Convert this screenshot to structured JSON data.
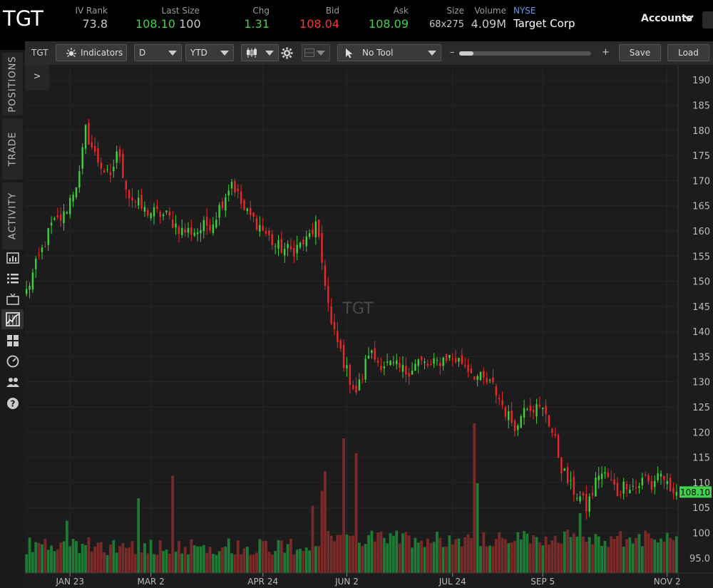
{
  "header": {
    "symbol": "TGT",
    "iv_rank_label": "IV Rank",
    "iv_rank": "73.8",
    "last_size_label": "Last Size",
    "last_price": "108.10",
    "last_size": "100",
    "chg_label": "Chg",
    "chg": "1.31",
    "bid_label": "Bid",
    "bid": "108.04",
    "ask_label": "Ask",
    "ask": "108.09",
    "size_label": "Size",
    "size": "68x275",
    "volume_label": "Volume",
    "volume": "4.09M",
    "exchange": "NYSE",
    "company": "Target Corp",
    "accounts_label": "Accounts"
  },
  "left_rail": {
    "tabs": [
      "POSITIONS",
      "TRADE",
      "ACTIVITY"
    ],
    "icons": [
      "chart-panel-icon",
      "list-icon",
      "tv-icon",
      "charts-icon",
      "grid-icon",
      "gauge-icon",
      "people-icon",
      "help-icon"
    ]
  },
  "toolbar": {
    "symbol": "TGT",
    "indicators_label": "Indicators",
    "aggregation": "D",
    "range": "YTD",
    "tool_label": "No Tool",
    "zoom_minus": "–",
    "zoom_plus": "+",
    "zoom_level": 0.11,
    "save_label": "Save",
    "load_label": "Load"
  },
  "chart_data": {
    "type": "candlestick",
    "watermark": "TGT",
    "ylim": [
      92,
      193
    ],
    "y_ticks": [
      95,
      100,
      105,
      110,
      115,
      120,
      125,
      130,
      135,
      140,
      145,
      150,
      155,
      160,
      165,
      170,
      175,
      180,
      185,
      190
    ],
    "y_tick_labels": [
      "95.0",
      "100",
      "105",
      "110",
      "115",
      "120",
      "125",
      "130",
      "135",
      "140",
      "145",
      "150",
      "155",
      "160",
      "165",
      "170",
      "175",
      "180",
      "185",
      "190"
    ],
    "x_tick_labels": [
      "JAN 23",
      "MAR 2",
      "APR 24",
      "JUN 2",
      "JUL 24",
      "SEP 5",
      "NOV 2"
    ],
    "x_tick_index": [
      14,
      40,
      76,
      103,
      137,
      166,
      206
    ],
    "last_price_label": "108.10",
    "last_price": 108.1,
    "colors": {
      "up": "#3fcf3f",
      "down": "#e8282b",
      "up_volume": "#1f7a36",
      "down_volume": "#7a2a28",
      "price_label_bg": "#3fd24a"
    },
    "close_path": [
      [
        0,
        148
      ],
      [
        3,
        153
      ],
      [
        8,
        161
      ],
      [
        12,
        163
      ],
      [
        15,
        168
      ],
      [
        17,
        171
      ],
      [
        19,
        180
      ],
      [
        22,
        175
      ],
      [
        27,
        170
      ],
      [
        29,
        176
      ],
      [
        33,
        167
      ],
      [
        38,
        164
      ],
      [
        45,
        163
      ],
      [
        50,
        160
      ],
      [
        55,
        160
      ],
      [
        60,
        162
      ],
      [
        63,
        166
      ],
      [
        66,
        170
      ],
      [
        70,
        164
      ],
      [
        75,
        161
      ],
      [
        80,
        157
      ],
      [
        85,
        156
      ],
      [
        90,
        158
      ],
      [
        93,
        161
      ],
      [
        96,
        150
      ],
      [
        98,
        141
      ],
      [
        101,
        136
      ],
      [
        103,
        132
      ],
      [
        106,
        128
      ],
      [
        108,
        131
      ],
      [
        110,
        136
      ],
      [
        113,
        134
      ],
      [
        118,
        133
      ],
      [
        122,
        132
      ],
      [
        126,
        134
      ],
      [
        130,
        133
      ],
      [
        135,
        135
      ],
      [
        140,
        134
      ],
      [
        145,
        131
      ],
      [
        150,
        129
      ],
      [
        155,
        123
      ],
      [
        158,
        121
      ],
      [
        160,
        126
      ],
      [
        163,
        125
      ],
      [
        167,
        124
      ],
      [
        170,
        118
      ],
      [
        172,
        113
      ],
      [
        175,
        109
      ],
      [
        178,
        107
      ],
      [
        180,
        105
      ],
      [
        182,
        108
      ],
      [
        184,
        112
      ],
      [
        187,
        111
      ],
      [
        190,
        108
      ],
      [
        193,
        110
      ],
      [
        196,
        109
      ],
      [
        199,
        111
      ],
      [
        201,
        109
      ],
      [
        203,
        112
      ],
      [
        205,
        111
      ],
      [
        207,
        107
      ],
      [
        209,
        108.1
      ]
    ],
    "volume_spikes": [
      [
        13,
        0.35
      ],
      [
        36,
        0.5
      ],
      [
        47,
        0.65
      ],
      [
        92,
        0.45
      ],
      [
        95,
        0.55
      ],
      [
        96,
        0.68
      ],
      [
        102,
        0.9
      ],
      [
        106,
        0.8
      ],
      [
        144,
        1.0
      ],
      [
        145,
        0.6
      ],
      [
        178,
        0.4
      ]
    ],
    "candles": 210
  }
}
